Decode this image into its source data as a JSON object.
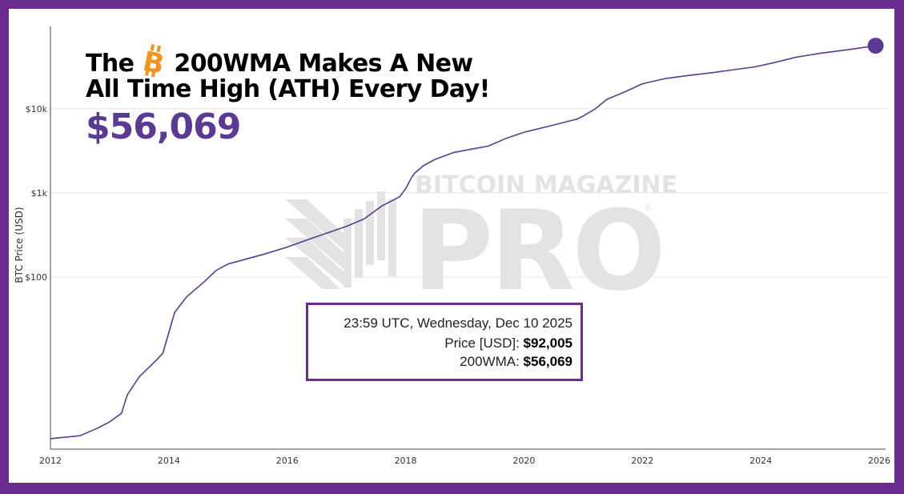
{
  "title": {
    "before_icon": "The",
    "after_icon": "200WMA Makes A New",
    "line2": "All Time High (ATH) Every Day!",
    "icon": "bitcoin-icon"
  },
  "headline_value": "$56,069",
  "watermark": {
    "line1": "BITCOIN MAGAZINE",
    "line2": "PRO",
    "mark": "®"
  },
  "tooltip": {
    "datetime": "23:59 UTC, Wednesday, Dec 10 2025",
    "price_label": "Price [USD]:",
    "price_value": "$92,005",
    "wma_label": "200WMA:",
    "wma_value": "$56,069"
  },
  "colors": {
    "frame": "#6a2c91",
    "line": "#5b3a93",
    "headline": "#5b3a93",
    "bitcoin": "#f7931a",
    "grid": "#e6e6e6",
    "watermark": "#e3e3e3"
  },
  "chart_data": {
    "type": "line",
    "ylabel": "BTC Price (USD)",
    "yscale": "log",
    "xlim": [
      2012,
      2026
    ],
    "ylim": [
      0.9,
      95000
    ],
    "x_ticks": [
      "2012",
      "2014",
      "2016",
      "2018",
      "2020",
      "2022",
      "2024",
      "2026"
    ],
    "y_ticks": [
      {
        "value": 100,
        "label": "$100"
      },
      {
        "value": 1000,
        "label": "$1k"
      },
      {
        "value": 10000,
        "label": "$10k"
      }
    ],
    "grid": {
      "horizontal": true,
      "vertical": false
    },
    "series": [
      {
        "name": "200WMA",
        "x": [
          2012.0,
          2012.5,
          2012.8,
          2013.0,
          2013.2,
          2013.3,
          2013.5,
          2013.8,
          2013.9,
          2014.0,
          2014.1,
          2014.3,
          2014.6,
          2014.8,
          2015.0,
          2015.3,
          2015.6,
          2016.0,
          2016.3,
          2016.6,
          2017.0,
          2017.3,
          2017.6,
          2017.9,
          2018.0,
          2018.1,
          2018.15,
          2018.3,
          2018.5,
          2018.8,
          2019.0,
          2019.4,
          2019.7,
          2020.0,
          2020.4,
          2020.9,
          2021.0,
          2021.2,
          2021.4,
          2021.7,
          2022.0,
          2022.4,
          2022.8,
          2023.2,
          2023.6,
          2023.9,
          2024.2,
          2024.6,
          2025.0,
          2025.5,
          2025.94
        ],
        "y": [
          1.2,
          1.3,
          1.6,
          1.9,
          2.4,
          4.0,
          6.5,
          10.5,
          12.5,
          22,
          38,
          58,
          88,
          120,
          143,
          163,
          186,
          227,
          270,
          320,
          400,
          490,
          700,
          900,
          1120,
          1520,
          1710,
          2100,
          2500,
          3000,
          3200,
          3600,
          4450,
          5250,
          6150,
          7550,
          8200,
          9900,
          12900,
          15800,
          19800,
          22900,
          24900,
          26900,
          29400,
          31400,
          34900,
          41000,
          45500,
          50500,
          56069
        ]
      }
    ]
  }
}
